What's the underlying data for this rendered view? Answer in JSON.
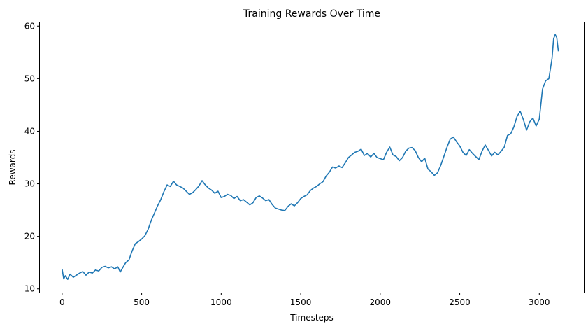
{
  "chart_data": {
    "type": "line",
    "title": "Training Rewards Over Time",
    "xlabel": "Timesteps",
    "ylabel": "Rewards",
    "xlim": [
      -140,
      3280
    ],
    "ylim": [
      9.3,
      60.7
    ],
    "xticks": [
      0,
      500,
      1000,
      1500,
      2000,
      2500,
      3000
    ],
    "yticks": [
      10,
      20,
      30,
      40,
      50,
      60
    ],
    "grid": false,
    "legend": "none",
    "series": [
      {
        "color": "#1f77b4",
        "x": [
          0,
          10,
          20,
          35,
          50,
          70,
          90,
          110,
          130,
          150,
          170,
          190,
          210,
          230,
          250,
          270,
          290,
          310,
          330,
          350,
          365,
          380,
          400,
          420,
          440,
          460,
          480,
          500,
          520,
          540,
          560,
          580,
          600,
          620,
          640,
          660,
          680,
          700,
          720,
          740,
          760,
          780,
          800,
          820,
          840,
          860,
          880,
          900,
          920,
          940,
          960,
          980,
          1000,
          1020,
          1040,
          1060,
          1080,
          1100,
          1120,
          1140,
          1160,
          1180,
          1200,
          1220,
          1240,
          1260,
          1280,
          1300,
          1320,
          1340,
          1360,
          1380,
          1400,
          1420,
          1440,
          1460,
          1480,
          1500,
          1520,
          1540,
          1560,
          1580,
          1600,
          1620,
          1640,
          1660,
          1680,
          1700,
          1720,
          1740,
          1760,
          1780,
          1800,
          1820,
          1840,
          1860,
          1880,
          1900,
          1920,
          1940,
          1960,
          1980,
          2000,
          2020,
          2040,
          2060,
          2080,
          2100,
          2120,
          2140,
          2160,
          2180,
          2200,
          2220,
          2240,
          2260,
          2280,
          2300,
          2320,
          2340,
          2360,
          2380,
          2400,
          2420,
          2440,
          2460,
          2480,
          2500,
          2520,
          2540,
          2560,
          2580,
          2600,
          2620,
          2640,
          2660,
          2680,
          2700,
          2720,
          2740,
          2760,
          2780,
          2800,
          2820,
          2840,
          2860,
          2880,
          2900,
          2920,
          2940,
          2960,
          2980,
          3000,
          3020,
          3040,
          3060,
          3080,
          3090,
          3100,
          3110,
          3120
        ],
        "y": [
          13.8,
          11.9,
          12.5,
          11.8,
          12.8,
          12.2,
          12.6,
          13.0,
          13.3,
          12.6,
          13.2,
          13.0,
          13.6,
          13.4,
          14.1,
          14.3,
          14.0,
          14.2,
          13.8,
          14.2,
          13.2,
          14.0,
          15.0,
          15.5,
          17.2,
          18.6,
          19.0,
          19.5,
          20.1,
          21.3,
          23.0,
          24.4,
          25.8,
          27.0,
          28.5,
          29.8,
          29.5,
          30.5,
          29.8,
          29.5,
          29.2,
          28.6,
          28.0,
          28.3,
          28.9,
          29.6,
          30.6,
          29.8,
          29.2,
          28.8,
          28.2,
          28.6,
          27.4,
          27.6,
          28.0,
          27.8,
          27.2,
          27.6,
          26.8,
          27.0,
          26.5,
          26.0,
          26.4,
          27.4,
          27.7,
          27.3,
          26.8,
          27.0,
          26.1,
          25.4,
          25.2,
          25.0,
          24.9,
          25.7,
          26.2,
          25.8,
          26.4,
          27.2,
          27.6,
          27.9,
          28.7,
          29.2,
          29.5,
          30.0,
          30.4,
          31.5,
          32.2,
          33.2,
          33.0,
          33.4,
          33.1,
          34.0,
          35.0,
          35.5,
          36.0,
          36.2,
          36.6,
          35.4,
          35.8,
          35.1,
          35.8,
          35.0,
          34.8,
          34.6,
          36.0,
          37.0,
          35.5,
          35.2,
          34.4,
          35.0,
          36.2,
          36.8,
          36.9,
          36.3,
          35.0,
          34.2,
          34.9,
          32.8,
          32.3,
          31.6,
          32.1,
          33.5,
          35.2,
          37.0,
          38.5,
          38.9,
          38.0,
          37.2,
          36.0,
          35.4,
          36.5,
          35.8,
          35.2,
          34.6,
          36.2,
          37.4,
          36.4,
          35.3,
          36.0,
          35.5,
          36.2,
          37.0,
          39.2,
          39.5,
          40.8,
          42.8,
          43.8,
          42.2,
          40.2,
          41.8,
          42.5,
          41.0,
          42.3,
          48.0,
          49.6,
          50.0,
          53.8,
          57.6,
          58.4,
          57.8,
          55.2
        ]
      }
    ]
  }
}
